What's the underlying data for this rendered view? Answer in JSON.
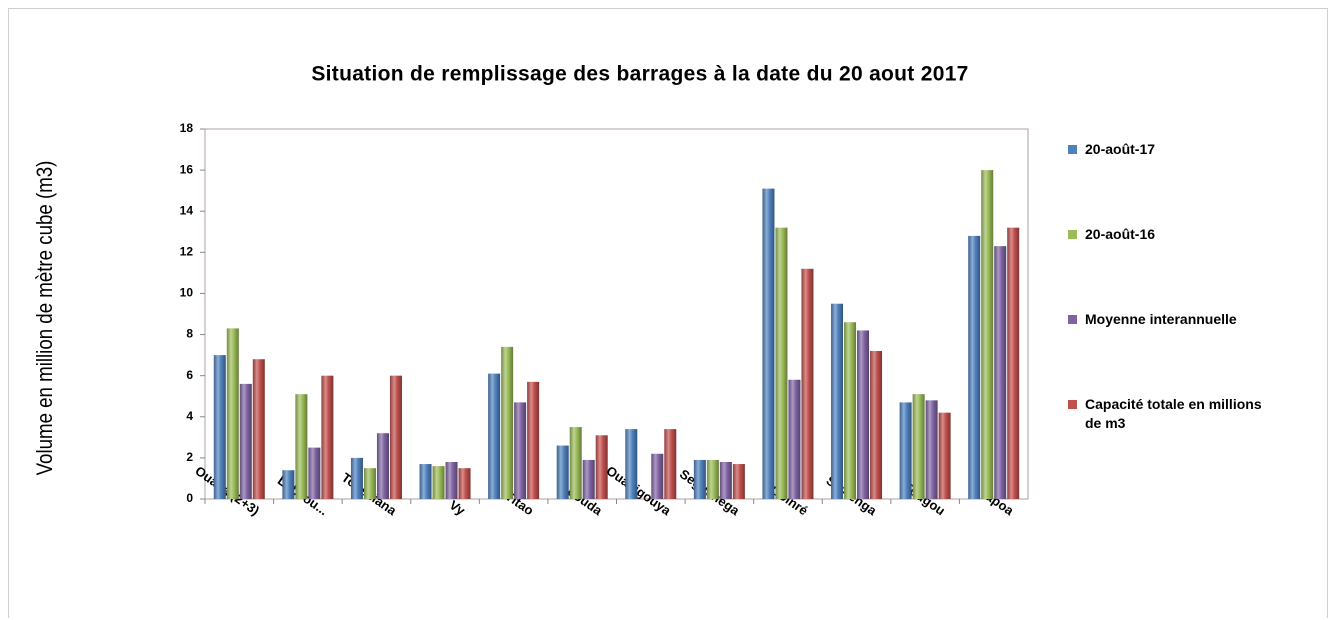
{
  "chart_data": {
    "type": "bar",
    "title": "Situation de remplissage des barrages à la date du 20 aout 2017",
    "y_label": "Volume en million de mètre cube (m3)",
    "categories": [
      "Ouaga (2+3)",
      "Lobi ou...",
      "Toussiana",
      "Vy",
      "Titao",
      "Louda",
      "Ouahigouya",
      "Seguenega",
      "Goinré",
      "Seytenga",
      "Tougou",
      "Tapoa"
    ],
    "series": [
      {
        "name": "20-août-17",
        "color": "#4f81bd",
        "values": [
          7.0,
          1.4,
          2.0,
          1.7,
          6.1,
          2.6,
          3.4,
          1.9,
          15.1,
          9.5,
          4.7,
          12.8
        ]
      },
      {
        "name": "20-août-16",
        "color": "#9bbb59",
        "values": [
          8.3,
          5.1,
          1.5,
          1.6,
          7.4,
          3.5,
          null,
          1.9,
          13.2,
          8.6,
          5.1,
          16.0
        ]
      },
      {
        "name": "Moyenne interannuelle",
        "color": "#8064a2",
        "values": [
          5.6,
          2.5,
          3.2,
          1.8,
          4.7,
          1.9,
          2.2,
          1.8,
          5.8,
          8.2,
          4.8,
          12.3
        ]
      },
      {
        "name": "Capacité totale en millions de m3",
        "color": "#c0504d",
        "values": [
          6.8,
          6.0,
          6.0,
          1.5,
          5.7,
          3.1,
          3.4,
          1.7,
          11.2,
          7.2,
          4.2,
          13.2
        ]
      }
    ],
    "ylim": [
      0,
      18
    ],
    "yticks": [
      0,
      2,
      4,
      6,
      8,
      10,
      12,
      14,
      16,
      18
    ],
    "grid": false,
    "legend": "right"
  }
}
